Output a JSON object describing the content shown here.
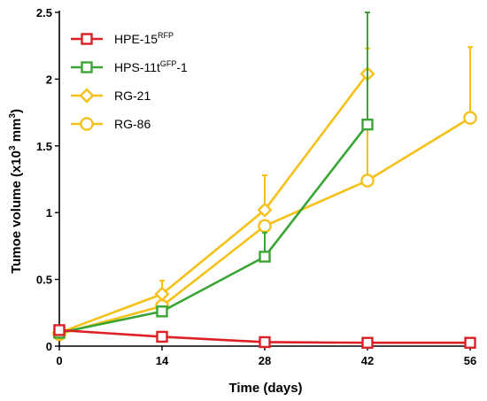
{
  "chart_data": {
    "type": "line",
    "xlabel": "Time (days)",
    "ylabel": {
      "base": "Tumoe volume (x10",
      "sup1": "3",
      "mid": " mm",
      "sup2": "3",
      "tail": ")"
    },
    "xlim": [
      0,
      56
    ],
    "ylim": [
      0,
      2.5
    ],
    "x_ticks": [
      "0",
      "14",
      "28",
      "42",
      "56"
    ],
    "y_ticks": [
      "0",
      "0.5",
      "1",
      "1.5",
      "2",
      "2.5"
    ],
    "grid": false,
    "legend_position": "top-left",
    "series": [
      {
        "name": "HPE-15",
        "name_sup": "RFP",
        "name_suffix": "",
        "color": "#dd1f26",
        "marker": "square",
        "x": [
          0,
          14,
          28,
          42,
          56
        ],
        "y": [
          0.12,
          0.07,
          0.03,
          0.025,
          0.025
        ],
        "err": [
          0.03,
          0,
          0,
          0,
          0
        ]
      },
      {
        "name": "HPS-11t",
        "name_sup": "GFP",
        "name_suffix": "-1",
        "color": "#3aa535",
        "marker": "square",
        "x": [
          0,
          14,
          28,
          42
        ],
        "y": [
          0.1,
          0.26,
          0.67,
          1.66
        ],
        "err": [
          0,
          0,
          0.18,
          0.84
        ]
      },
      {
        "name": "RG-21",
        "name_sup": "",
        "name_suffix": "",
        "color": "#f6c117",
        "marker": "diamond",
        "x": [
          0,
          14,
          28,
          42
        ],
        "y": [
          0.1,
          0.39,
          1.02,
          2.04
        ],
        "err": [
          0,
          0.1,
          0.26,
          0.19
        ]
      },
      {
        "name": "RG-86",
        "name_sup": "",
        "name_suffix": "",
        "color": "#f6c117",
        "marker": "circle",
        "x": [
          0,
          14,
          28,
          42,
          56
        ],
        "y": [
          0.09,
          0.3,
          0.9,
          1.24,
          1.71
        ],
        "err": [
          0,
          0,
          0,
          0.82,
          0.53
        ]
      }
    ]
  }
}
